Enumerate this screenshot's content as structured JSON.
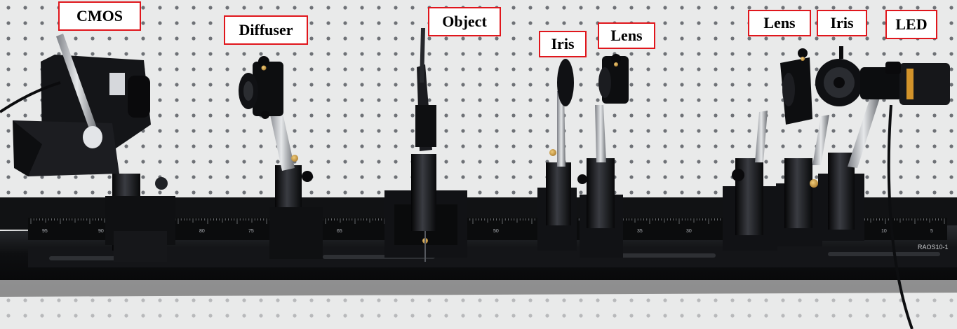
{
  "component_labels": [
    {
      "id": "cmos",
      "text": "CMOS"
    },
    {
      "id": "diffuser",
      "text": "Diffuser"
    },
    {
      "id": "object",
      "text": "Object"
    },
    {
      "id": "iris1",
      "text": "Iris"
    },
    {
      "id": "lens1",
      "text": "Lens"
    },
    {
      "id": "lens2",
      "text": "Lens"
    },
    {
      "id": "iris2",
      "text": "Iris"
    },
    {
      "id": "led",
      "text": "LED"
    }
  ],
  "rail": {
    "scale_numbers": [
      "95",
      "90",
      "80",
      "75",
      "65",
      "50",
      "35",
      "30",
      "10",
      "5"
    ],
    "model_plate": "RAOS10-1"
  },
  "colors": {
    "table": "#e9eaea",
    "hole": "#6e7176",
    "hardware": "#121316",
    "label_border": "#e0161c",
    "brass": "#c99a3a"
  }
}
